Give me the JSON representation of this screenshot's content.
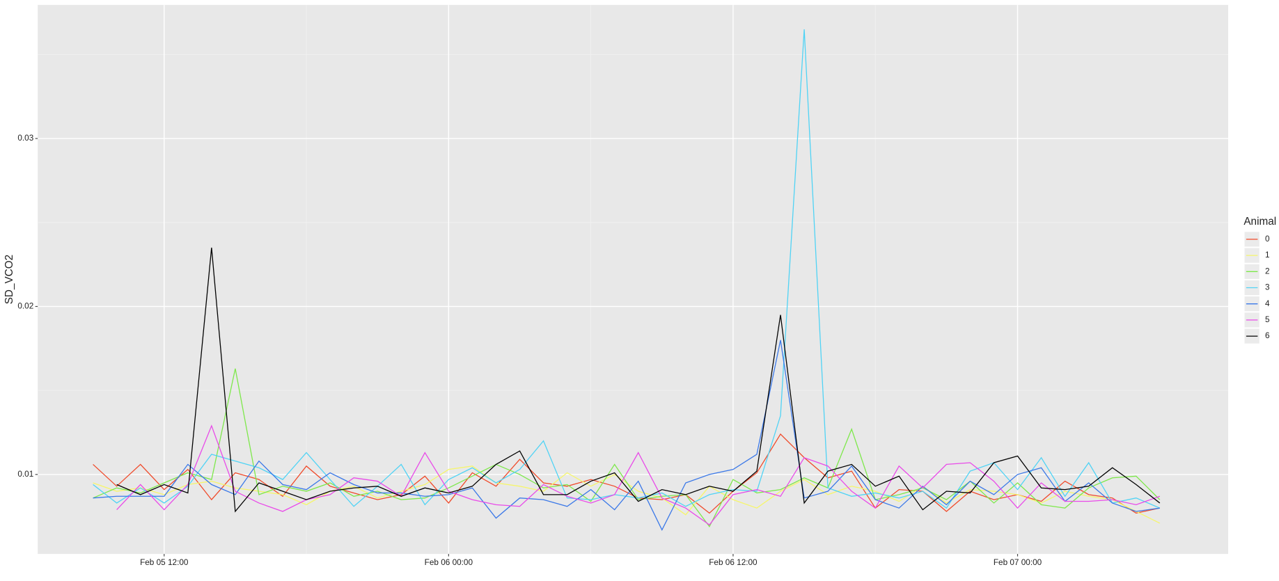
{
  "chart_data": {
    "type": "line",
    "y_label": "SD_VCO2",
    "legend_title": "Animal",
    "legend_position": "right",
    "grid": true,
    "x": [
      "Feb 05 09:00",
      "Feb 05 10:00",
      "Feb 05 11:00",
      "Feb 05 12:00",
      "Feb 05 13:00",
      "Feb 05 14:00",
      "Feb 05 15:00",
      "Feb 05 16:00",
      "Feb 05 17:00",
      "Feb 05 18:00",
      "Feb 05 19:00",
      "Feb 05 20:00",
      "Feb 05 21:00",
      "Feb 05 22:00",
      "Feb 05 23:00",
      "Feb 06 00:00",
      "Feb 06 01:00",
      "Feb 06 02:00",
      "Feb 06 03:00",
      "Feb 06 04:00",
      "Feb 06 05:00",
      "Feb 06 06:00",
      "Feb 06 07:00",
      "Feb 06 08:00",
      "Feb 06 09:00",
      "Feb 06 10:00",
      "Feb 06 11:00",
      "Feb 06 12:00",
      "Feb 06 13:00",
      "Feb 06 14:00",
      "Feb 06 15:00",
      "Feb 06 16:00",
      "Feb 06 17:00",
      "Feb 06 18:00",
      "Feb 06 19:00",
      "Feb 06 20:00",
      "Feb 06 21:00",
      "Feb 06 22:00",
      "Feb 06 23:00",
      "Feb 07 00:00",
      "Feb 07 01:00",
      "Feb 07 02:00",
      "Feb 07 03:00",
      "Feb 07 04:00",
      "Feb 07 05:00",
      "Feb 07 06:00"
    ],
    "xlim": [
      "Feb 05 06:40",
      "Feb 07 08:53"
    ],
    "xticks": [
      "Feb 05 12:00",
      "Feb 06 00:00",
      "Feb 06 12:00",
      "Feb 07 00:00"
    ],
    "ylim": [
      0.00527,
      0.03795
    ],
    "yticks": [
      0.01,
      0.02,
      0.03
    ],
    "series": [
      {
        "name": "0",
        "color": "#f04a2a",
        "values": [
          0.0106,
          0.0093,
          0.0106,
          0.0091,
          0.0103,
          0.0085,
          0.0101,
          0.0097,
          0.0087,
          0.0105,
          0.0093,
          0.0089,
          0.0085,
          0.0088,
          0.0099,
          0.0083,
          0.0101,
          0.0093,
          0.0109,
          0.0095,
          0.0093,
          0.0097,
          0.0093,
          0.0086,
          0.0085,
          0.0088,
          0.0077,
          0.009,
          0.0101,
          0.0124,
          0.011,
          0.0098,
          0.0102,
          0.008,
          0.0091,
          0.009,
          0.0078,
          0.009,
          0.0085,
          0.0088,
          0.0084,
          0.0096,
          0.0088,
          0.0086,
          0.0077,
          0.008
        ]
      },
      {
        "name": "1",
        "color": "#f6f66a",
        "values": [
          0.0095,
          0.009,
          0.0092,
          0.0088,
          0.0094,
          0.0096,
          0.0092,
          0.009,
          0.0088,
          0.0082,
          0.009,
          0.0093,
          0.0086,
          0.009,
          0.0094,
          0.0103,
          0.0105,
          0.0095,
          0.0093,
          0.009,
          0.0101,
          0.0093,
          0.01,
          0.009,
          0.0086,
          0.0076,
          0.0093,
          0.0085,
          0.008,
          0.009,
          0.0097,
          0.0088,
          0.0093,
          0.009,
          0.0084,
          0.0093,
          0.0083,
          0.0091,
          0.009,
          0.0088,
          0.0083,
          0.009,
          0.0087,
          0.0085,
          0.0078,
          0.0071
        ]
      },
      {
        "name": "2",
        "color": "#7de84a",
        "values": [
          0.0086,
          0.0092,
          0.0089,
          0.0095,
          0.0101,
          0.0097,
          0.0163,
          0.0088,
          0.0093,
          0.009,
          0.0095,
          0.0087,
          0.009,
          0.0085,
          0.0086,
          0.0092,
          0.0099,
          0.0106,
          0.01,
          0.0092,
          0.0094,
          0.0084,
          0.0106,
          0.0085,
          0.0087,
          0.0088,
          0.0069,
          0.0097,
          0.0089,
          0.0091,
          0.0098,
          0.0092,
          0.0127,
          0.0085,
          0.0088,
          0.0092,
          0.0085,
          0.0096,
          0.0083,
          0.0095,
          0.0082,
          0.008,
          0.0092,
          0.0098,
          0.0099,
          0.0085
        ]
      },
      {
        "name": "3",
        "color": "#4fd3f5",
        "values": [
          0.0094,
          0.0083,
          0.0092,
          0.0083,
          0.0093,
          0.0112,
          0.0108,
          0.0104,
          0.0097,
          0.0113,
          0.0097,
          0.0081,
          0.0093,
          0.0106,
          0.0082,
          0.0097,
          0.0104,
          0.0095,
          0.0103,
          0.012,
          0.0086,
          0.0085,
          0.0088,
          0.0086,
          0.0089,
          0.0081,
          0.0088,
          0.0091,
          0.009,
          0.0135,
          0.0365,
          0.0092,
          0.0087,
          0.0089,
          0.0086,
          0.009,
          0.008,
          0.0102,
          0.0107,
          0.0091,
          0.011,
          0.0087,
          0.0107,
          0.0083,
          0.0086,
          0.008
        ]
      },
      {
        "name": "4",
        "color": "#3a78e8",
        "values": [
          0.0086,
          0.0087,
          0.0087,
          0.0087,
          0.0106,
          0.0094,
          0.0088,
          0.0108,
          0.0094,
          0.0091,
          0.0101,
          0.0094,
          0.0089,
          0.0089,
          0.0087,
          0.0088,
          0.0092,
          0.0074,
          0.0086,
          0.0085,
          0.0081,
          0.0091,
          0.0079,
          0.0096,
          0.0067,
          0.0095,
          0.01,
          0.0103,
          0.0112,
          0.018,
          0.0086,
          0.009,
          0.0105,
          0.0085,
          0.008,
          0.0093,
          0.0082,
          0.0096,
          0.0088,
          0.01,
          0.0104,
          0.0084,
          0.0095,
          0.0083,
          0.0078,
          0.008
        ]
      },
      {
        "name": "5",
        "color": "#e94ae9",
        "values": [
          null,
          0.0079,
          0.0094,
          0.0079,
          0.0094,
          0.0129,
          0.009,
          0.0083,
          0.0078,
          0.0085,
          0.0088,
          0.0098,
          0.0096,
          0.0087,
          0.0113,
          0.009,
          0.0085,
          0.0082,
          0.0081,
          0.0094,
          0.0087,
          0.0083,
          0.0088,
          0.0113,
          0.0086,
          0.008,
          0.007,
          0.0088,
          0.0091,
          0.0087,
          0.011,
          0.0105,
          0.009,
          0.008,
          0.0105,
          0.0092,
          0.0106,
          0.0107,
          0.0096,
          0.008,
          0.0095,
          0.0084,
          0.0084,
          0.0085,
          0.0082,
          0.0087
        ]
      },
      {
        "name": "6",
        "color": "#000000",
        "values": [
          null,
          0.0094,
          0.0088,
          0.0094,
          0.0089,
          0.0235,
          0.0078,
          0.0095,
          0.009,
          0.0085,
          0.009,
          0.0092,
          0.0093,
          0.0087,
          0.0092,
          0.0089,
          0.0093,
          0.0106,
          0.0114,
          0.0088,
          0.0088,
          0.0096,
          0.0101,
          0.0084,
          0.0091,
          0.0088,
          0.0093,
          0.009,
          0.0102,
          0.0195,
          0.0083,
          0.0102,
          0.0106,
          0.0093,
          0.0099,
          0.0079,
          0.009,
          0.0089,
          0.0107,
          0.0111,
          0.0092,
          0.0091,
          0.0093,
          0.0104,
          0.0094,
          0.0083
        ]
      }
    ]
  }
}
